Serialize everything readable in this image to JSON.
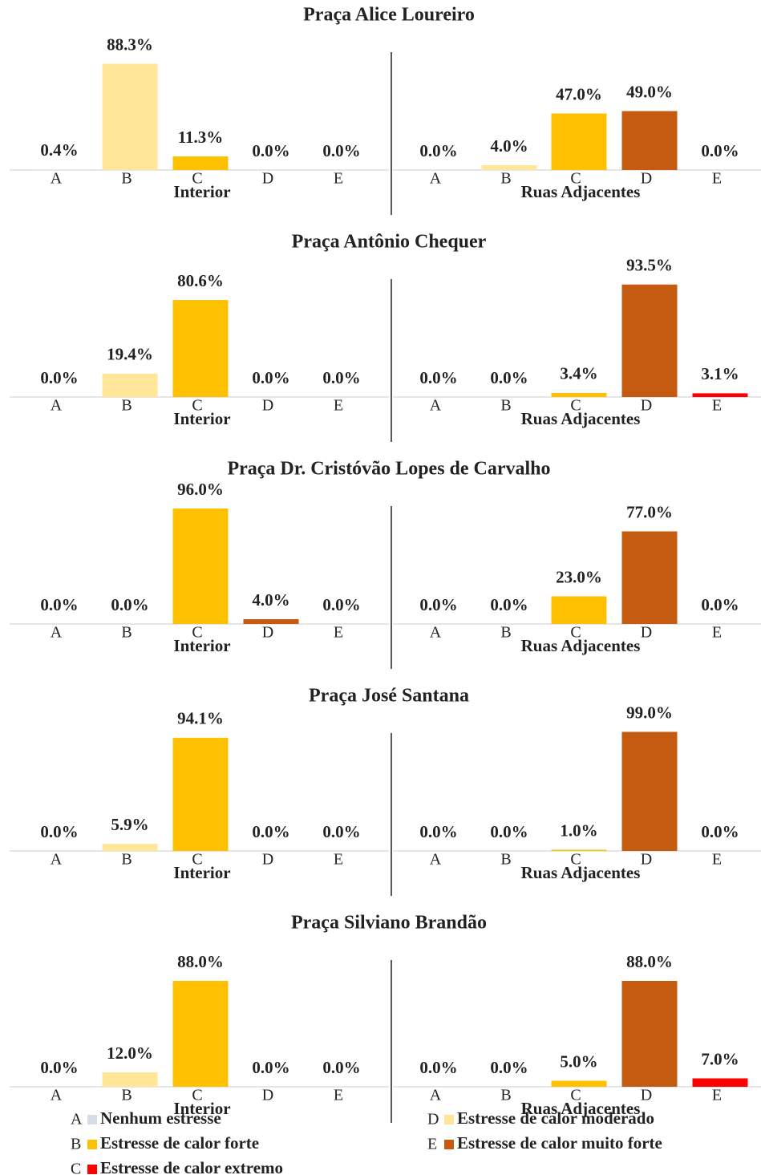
{
  "chart_data": {
    "type": "bar",
    "categories": [
      "A",
      "B",
      "C",
      "D",
      "E"
    ],
    "colors": [
      "#d6dce5",
      "#ffe699",
      "#ffc000",
      "#c55a11",
      "#ff0000"
    ],
    "ylim": [
      0,
      100
    ],
    "panels": [
      {
        "title": "Praça Alice Loureiro",
        "groups": [
          {
            "label": "Interior",
            "values": [
              0.4,
              88.3,
              11.3,
              0,
              0
            ],
            "value_labels": [
              "0.4%",
              "88.3%",
              "11.3%",
              "0.0%",
              "0.0%"
            ]
          },
          {
            "label": "Ruas Adjacentes",
            "values": [
              0,
              4,
              47,
              49,
              0
            ],
            "value_labels": [
              "0.0%",
              "4.0%",
              "47.0%",
              "49.0%",
              "0.0%"
            ]
          }
        ]
      },
      {
        "title": "Praça Antônio Chequer",
        "groups": [
          {
            "label": "Interior",
            "values": [
              0,
              19.4,
              80.6,
              0,
              0
            ],
            "value_labels": [
              "0.0%",
              "19.4%",
              "80.6%",
              "0.0%",
              "0.0%"
            ]
          },
          {
            "label": "Ruas Adjacentes",
            "values": [
              0,
              0,
              3.4,
              93.5,
              3.1
            ],
            "value_labels": [
              "0.0%",
              "0.0%",
              "3.4%",
              "93.5%",
              "3.1%"
            ]
          }
        ]
      },
      {
        "title": "Praça Dr. Cristóvão Lopes de Carvalho",
        "groups": [
          {
            "label": "Interior",
            "values": [
              0,
              0,
              96,
              4,
              0
            ],
            "value_labels": [
              "0.0%",
              "0.0%",
              "96.0%",
              "4.0%",
              "0.0%"
            ]
          },
          {
            "label": "Ruas Adjacentes",
            "values": [
              0,
              0,
              23,
              77,
              0
            ],
            "value_labels": [
              "0.0%",
              "0.0%",
              "23.0%",
              "77.0%",
              "0.0%"
            ]
          }
        ]
      },
      {
        "title": "Praça José Santana",
        "groups": [
          {
            "label": "Interior",
            "values": [
              0,
              5.9,
              94.1,
              0,
              0
            ],
            "value_labels": [
              "0.0%",
              "5.9%",
              "94.1%",
              "0.0%",
              "0.0%"
            ]
          },
          {
            "label": "Ruas Adjacentes",
            "values": [
              0,
              0,
              1,
              99,
              0
            ],
            "value_labels": [
              "0.0%",
              "0.0%",
              "1.0%",
              "99.0%",
              "0.0%"
            ]
          }
        ]
      },
      {
        "title": "Praça Silviano Brandão",
        "groups": [
          {
            "label": "Interior",
            "values": [
              0,
              12,
              88,
              0,
              0
            ],
            "value_labels": [
              "0.0%",
              "12.0%",
              "88.0%",
              "0.0%",
              "0.0%"
            ]
          },
          {
            "label": "Ruas Adjacentes",
            "values": [
              0,
              0,
              5,
              88,
              7
            ],
            "value_labels": [
              "0.0%",
              "0.0%",
              "5.0%",
              "88.0%",
              "7.0%"
            ]
          }
        ]
      }
    ],
    "legend": [
      {
        "letter": "A",
        "label": "Nenhum estresse",
        "color": "#d6dce5"
      },
      {
        "letter": "B",
        "label": "Estresse de calor forte",
        "color": "#ffc000"
      },
      {
        "letter": "C",
        "label": "Estresse de calor extremo",
        "color": "#ff0000"
      },
      {
        "letter": "D",
        "label": "Estresse de calor moderado",
        "color": "#ffe699"
      },
      {
        "letter": "E",
        "label": "Estresse de calor muito forte",
        "color": "#c55a11"
      }
    ]
  }
}
